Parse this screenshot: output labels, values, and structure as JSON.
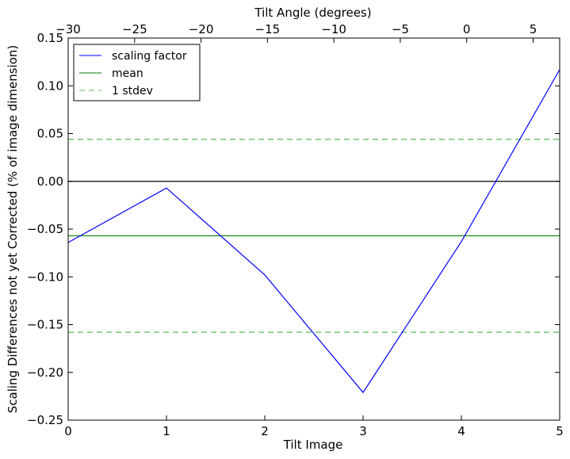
{
  "chart_data": {
    "type": "line",
    "x": [
      0,
      1,
      2,
      3,
      4,
      5
    ],
    "series": [
      {
        "name": "scaling factor",
        "values": [
          -0.064,
          -0.007,
          -0.098,
          -0.221,
          -0.063,
          0.117
        ],
        "color": "#0000ff",
        "style": "solid"
      }
    ],
    "reference_lines": [
      {
        "name": "mean",
        "value": -0.057,
        "color": "#008000",
        "style": "solid"
      },
      {
        "name": "1 stdev",
        "values": [
          0.044,
          -0.158
        ],
        "color": "#5cb85c",
        "style": "dashed"
      },
      {
        "name": "",
        "value": 0.0,
        "color": "#000000",
        "style": "solid"
      }
    ],
    "xlabel": "Tilt Image",
    "ylabel": "Scaling Differences not yet Corrected (% of image dimension)",
    "top_xlabel": "Tilt Angle (degrees)",
    "xlim": [
      0,
      5
    ],
    "ylim": [
      -0.25,
      0.15
    ],
    "top_xlim": [
      -30,
      7
    ],
    "x_ticks": [
      0,
      1,
      2,
      3,
      4,
      5
    ],
    "x_tick_labels": [
      "0",
      "1",
      "2",
      "3",
      "4",
      "5"
    ],
    "y_ticks": [
      0.15,
      0.1,
      0.05,
      0.0,
      -0.05,
      -0.1,
      -0.15,
      -0.2,
      -0.25
    ],
    "y_tick_labels": [
      "0.15",
      "0.10",
      "0.05",
      "0.00",
      "−0.05",
      "−0.10",
      "−0.15",
      "−0.20",
      "−0.25"
    ],
    "top_ticks": [
      -30,
      -25,
      -20,
      -15,
      -10,
      -5,
      0,
      5
    ],
    "top_tick_labels": [
      "−30",
      "−25",
      "−20",
      "−15",
      "−10",
      "−5",
      "0",
      "5"
    ],
    "legend": {
      "placement": "top-left",
      "entries": [
        "scaling factor",
        "mean",
        "1 stdev"
      ]
    },
    "grid": false
  }
}
